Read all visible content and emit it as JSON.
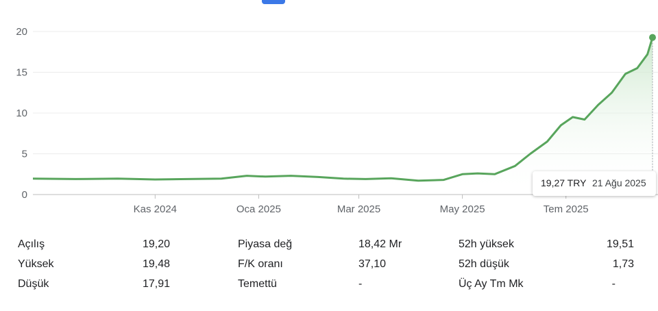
{
  "colors": {
    "line": "#58a55c",
    "fill_top": "#c8e6c9",
    "grid": "#ececec",
    "accent_tab": "#3b78e7"
  },
  "chart_data": {
    "type": "area",
    "title": "",
    "xlabel": "",
    "ylabel": "",
    "ylim": [
      0,
      20
    ],
    "y_ticks": [
      "0",
      "5",
      "10",
      "15",
      "20"
    ],
    "x_ticks": [
      "Kas 2024",
      "Oca 2025",
      "Mar 2025",
      "May 2025",
      "Tem 2025"
    ],
    "x_dates": [
      "2024-08-21",
      "2024-09-15",
      "2024-10-10",
      "2024-11-01",
      "2024-11-20",
      "2024-12-10",
      "2024-12-25",
      "2025-01-05",
      "2025-01-20",
      "2025-02-05",
      "2025-02-20",
      "2025-03-05",
      "2025-03-20",
      "2025-04-05",
      "2025-04-20",
      "2025-05-01",
      "2025-05-10",
      "2025-05-20",
      "2025-06-01",
      "2025-06-10",
      "2025-06-20",
      "2025-06-28",
      "2025-07-05",
      "2025-07-12",
      "2025-07-20",
      "2025-07-28",
      "2025-08-05",
      "2025-08-12",
      "2025-08-18",
      "2025-08-21"
    ],
    "series": [
      {
        "values": [
          1.95,
          1.9,
          1.95,
          1.85,
          1.9,
          1.95,
          2.3,
          2.2,
          2.3,
          2.15,
          1.95,
          1.9,
          2.0,
          1.7,
          1.8,
          2.5,
          2.6,
          2.5,
          3.5,
          5.0,
          6.5,
          8.5,
          9.5,
          9.2,
          11.0,
          12.5,
          14.8,
          15.5,
          17.2,
          19.27
        ]
      }
    ],
    "tooltip": {
      "price": "19,27 TRY",
      "date": "21 Ağu 2025"
    }
  },
  "stats": {
    "col1": [
      {
        "label": "Açılış",
        "value": "19,20"
      },
      {
        "label": "Yüksek",
        "value": "19,48"
      },
      {
        "label": "Düşük",
        "value": "17,91"
      }
    ],
    "col2": [
      {
        "label": "Piyasa değ",
        "value": "18,42 Mr"
      },
      {
        "label": "F/K oranı",
        "value": "37,10"
      },
      {
        "label": "Temettü",
        "value": "-"
      }
    ],
    "col3": [
      {
        "label": "52h yüksek",
        "value": "19,51"
      },
      {
        "label": "52h düşük",
        "value": "1,73"
      },
      {
        "label": "Üç Ay Tm Mk",
        "value": "-"
      }
    ]
  }
}
